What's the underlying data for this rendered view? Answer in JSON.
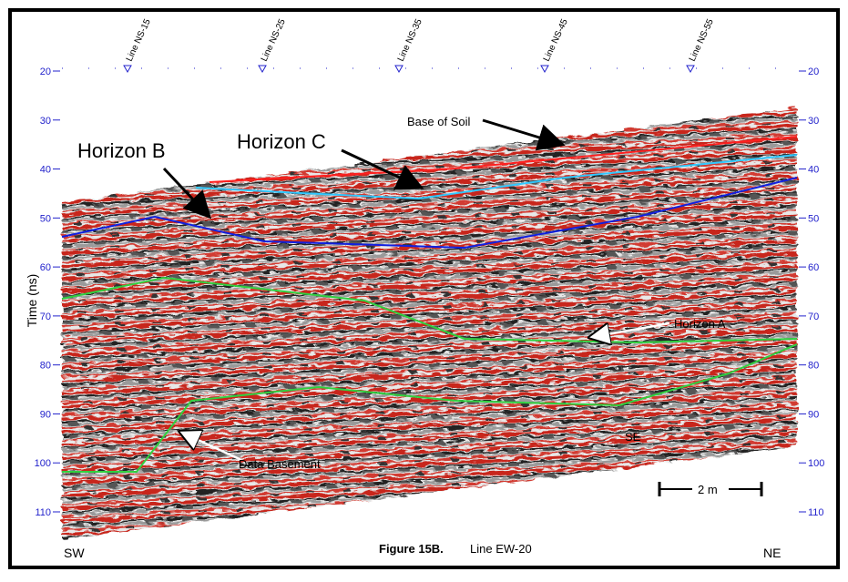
{
  "figure": {
    "caption_bold": "Figure 15B.",
    "caption": "Line EW-20",
    "y_axis_label": "Time (ns)",
    "ylim": [
      20,
      110
    ],
    "y_ticks": [
      20,
      30,
      40,
      50,
      60,
      70,
      80,
      90,
      100,
      110
    ],
    "survey_lines": [
      "Line NS-15",
      "Line NS-25",
      "Line NS-35",
      "Line NS-45",
      "Line NS-55"
    ],
    "annotations": {
      "horizon_b": "Horizon B",
      "horizon_c": "Horizon C",
      "base_of_soil": "Base of Soil",
      "horizon_a": "Horizon A",
      "data_basement": "Data Basement",
      "se": "SE"
    },
    "scale_bar": "2 m",
    "left_end": "SW",
    "right_end": "NE"
  }
}
